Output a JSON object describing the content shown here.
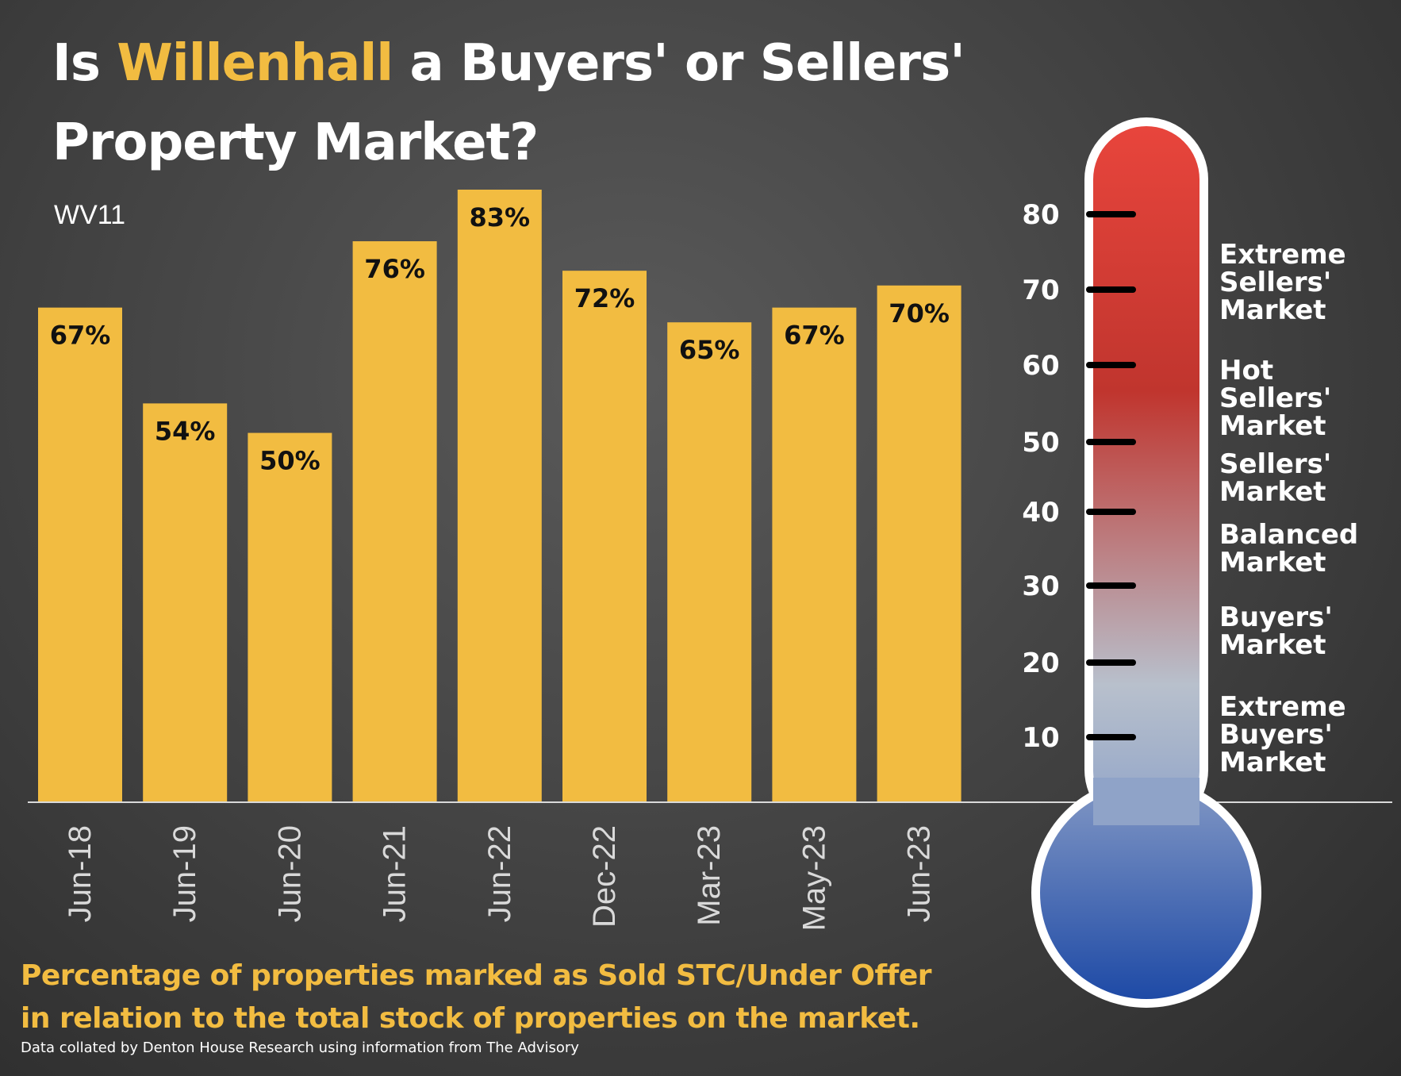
{
  "title": {
    "prefix": "Is ",
    "highlight": "Willenhall",
    "suffix_line1": " a Buyers' or Sellers'",
    "line2": "Property Market?"
  },
  "postcode": "WV11",
  "colors": {
    "bar": "#f2bc41",
    "highlight": "#f2bc41",
    "thermo_top": "#e8453c",
    "thermo_mid": "#c0352e",
    "thermo_light": "#b8c0cc",
    "thermo_bottom": "#1e4aa6"
  },
  "chart_data": {
    "type": "bar",
    "categories": [
      "Jun-18",
      "Jun-19",
      "Jun-20",
      "Jun-21",
      "Jun-22",
      "Dec-22",
      "Mar-23",
      "May-23",
      "Jun-23"
    ],
    "values": [
      67,
      54,
      50,
      76,
      83,
      72,
      65,
      67,
      70
    ],
    "data_labels": [
      "67%",
      "54%",
      "50%",
      "76%",
      "83%",
      "72%",
      "65%",
      "67%",
      "70%"
    ],
    "title": "",
    "xlabel": "",
    "ylabel": "",
    "ylim": [
      0,
      83
    ],
    "grid": false
  },
  "thermometer": {
    "ticks": [
      10,
      20,
      30,
      40,
      50,
      60,
      70,
      80
    ],
    "tick_labels": [
      "10",
      "20",
      "30",
      "40",
      "50",
      "60",
      "70",
      "80"
    ],
    "zones": [
      {
        "lines": [
          "Extreme",
          "Sellers'",
          "Market"
        ]
      },
      {
        "lines": [
          "Hot",
          "Sellers'",
          "Market"
        ]
      },
      {
        "lines": [
          "Sellers'",
          "Market"
        ]
      },
      {
        "lines": [
          "Balanced",
          "Market"
        ]
      },
      {
        "lines": [
          "Buyers'",
          "Market"
        ]
      },
      {
        "lines": [
          "Extreme",
          "Buyers'",
          "Market"
        ]
      }
    ]
  },
  "footnote": {
    "line1": "Percentage of properties marked as Sold STC/Under Offer",
    "line2": "in relation to the total stock of properties on the market."
  },
  "source": "Data collated by Denton House Research using information from The Advisory"
}
